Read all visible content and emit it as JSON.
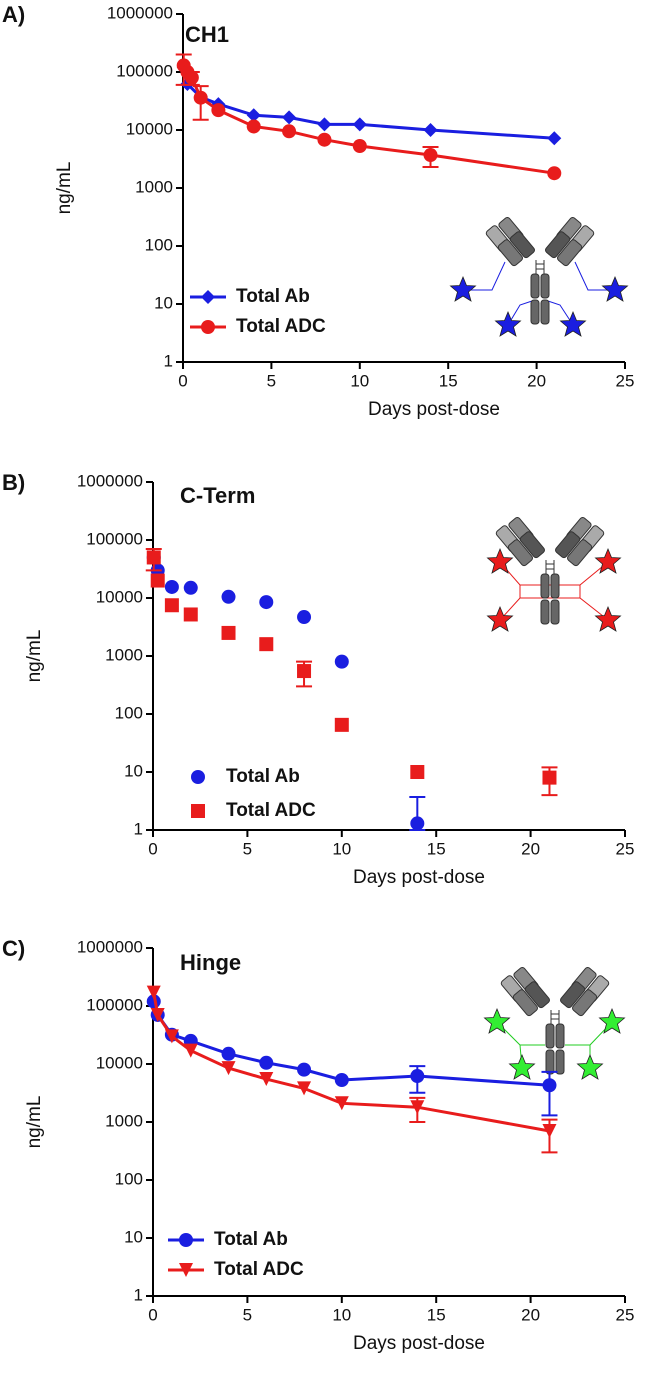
{
  "chart_data": [
    {
      "type": "scatter",
      "panel_label": "A)",
      "title": "CH1",
      "x_label": "Days post-dose",
      "y_label": "ng/mL",
      "xlim": [
        0,
        25
      ],
      "xticks": [
        0,
        5,
        10,
        15,
        20,
        25
      ],
      "ylim": [
        1,
        1000000
      ],
      "yscale": "log",
      "yticks": [
        1,
        10,
        100,
        1000,
        10000,
        100000,
        1000000
      ],
      "legend": "lower left",
      "series": [
        {
          "name": "Total Ab",
          "color": "#1a1ee0",
          "marker": "diamond",
          "line": true,
          "x": [
            0.04,
            0.25,
            1,
            2,
            4,
            6,
            8,
            10,
            14,
            21
          ],
          "values": [
            120000,
            62000,
            37000,
            28000,
            18000,
            16500,
            12500,
            12500,
            10000,
            7200
          ],
          "errors": [
            null,
            null,
            null,
            null,
            null,
            null,
            null,
            null,
            null,
            null
          ]
        },
        {
          "name": "Total ADC",
          "color": "#e81c1c",
          "marker": "circle",
          "line": true,
          "x": [
            0.04,
            0.25,
            0.5,
            1,
            2,
            4,
            6,
            8,
            10,
            14,
            21
          ],
          "values": [
            130000,
            100000,
            80000,
            36000,
            22000,
            11500,
            9500,
            6800,
            5300,
            3700,
            1800
          ],
          "errors": [
            70000,
            null,
            20000,
            21000,
            null,
            null,
            null,
            null,
            null,
            1400,
            null
          ]
        }
      ]
    },
    {
      "type": "scatter",
      "panel_label": "B)",
      "title": "C-Term",
      "x_label": "Days post-dose",
      "y_label": "ng/mL",
      "xlim": [
        0,
        25
      ],
      "xticks": [
        0,
        5,
        10,
        15,
        20,
        25
      ],
      "ylim": [
        1,
        1000000
      ],
      "yscale": "log",
      "yticks": [
        1,
        10,
        100,
        1000,
        10000,
        100000,
        1000000
      ],
      "legend": "lower left",
      "series": [
        {
          "name": "Total Ab",
          "color": "#1a1ee0",
          "marker": "circle",
          "line": false,
          "x": [
            0.04,
            0.25,
            1,
            2,
            4,
            6,
            8,
            10,
            14
          ],
          "values": [
            50000,
            30000,
            15500,
            15000,
            10500,
            8500,
            4700,
            800,
            1.3
          ],
          "errors": [
            null,
            null,
            null,
            null,
            null,
            null,
            null,
            null,
            2.4
          ]
        },
        {
          "name": "Total ADC",
          "color": "#e81c1c",
          "marker": "square",
          "line": false,
          "x": [
            0.04,
            0.25,
            1,
            2,
            4,
            6,
            8,
            10,
            14,
            21
          ],
          "values": [
            50000,
            20000,
            7500,
            5200,
            2500,
            1600,
            550,
            65,
            10,
            8
          ],
          "errors": [
            20000,
            null,
            null,
            null,
            null,
            null,
            250,
            null,
            null,
            4
          ]
        }
      ]
    },
    {
      "type": "scatter",
      "panel_label": "C)",
      "title": "Hinge",
      "x_label": "Days post-dose",
      "y_label": "ng/mL",
      "xlim": [
        0,
        25
      ],
      "xticks": [
        0,
        5,
        10,
        15,
        20,
        25
      ],
      "ylim": [
        1,
        1000000
      ],
      "yscale": "log",
      "yticks": [
        1,
        10,
        100,
        1000,
        10000,
        100000,
        1000000
      ],
      "legend": "lower left",
      "series": [
        {
          "name": "Total Ab",
          "color": "#1a1ee0",
          "marker": "circle",
          "line": true,
          "x": [
            0.04,
            0.25,
            1,
            2,
            4,
            6,
            8,
            10,
            14,
            21
          ],
          "values": [
            120000,
            70000,
            32000,
            25000,
            15000,
            10500,
            8000,
            5300,
            6200,
            4300
          ],
          "errors": [
            null,
            null,
            null,
            null,
            null,
            null,
            null,
            null,
            3000,
            3000
          ]
        },
        {
          "name": "Total ADC",
          "color": "#e81c1c",
          "marker": "triangle",
          "line": true,
          "x": [
            0.04,
            0.25,
            1,
            2,
            4,
            6,
            8,
            10,
            14,
            21
          ],
          "values": [
            170000,
            70000,
            30000,
            17000,
            8500,
            5500,
            3800,
            2100,
            1800,
            700
          ],
          "errors": [
            null,
            null,
            null,
            null,
            null,
            null,
            null,
            null,
            800,
            400
          ]
        }
      ]
    }
  ]
}
